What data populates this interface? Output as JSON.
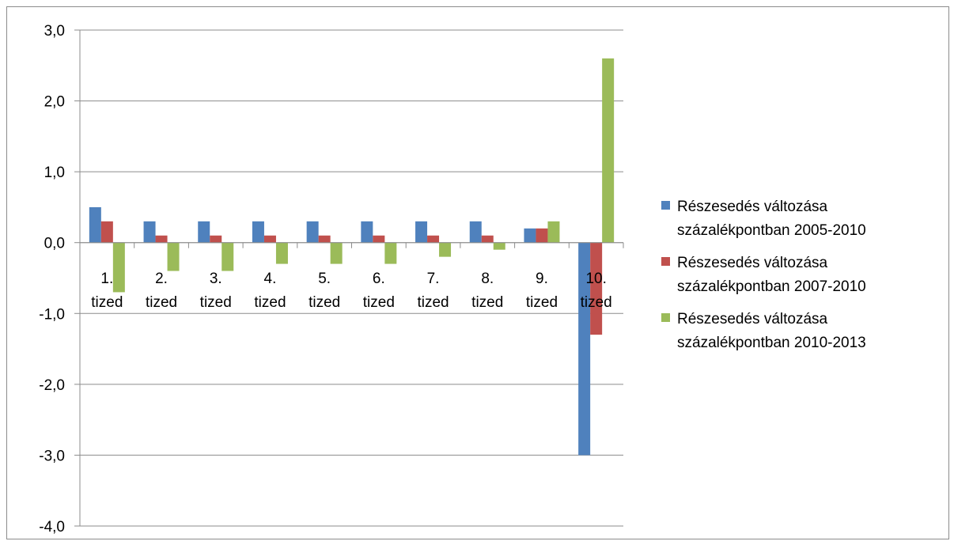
{
  "chart_data": {
    "type": "bar",
    "title": "",
    "xlabel": "",
    "ylabel": "",
    "ylim": [
      -4,
      3
    ],
    "y_ticks": [
      "3,0",
      "2,0",
      "1,0",
      "0,0",
      "-1,0",
      "-2,0",
      "-3,0",
      "-4,0"
    ],
    "y_tick_values": [
      3,
      2,
      1,
      0,
      -1,
      -2,
      -3,
      -4
    ],
    "grid": true,
    "legend_position": "right",
    "categories": [
      [
        "1.",
        "tized"
      ],
      [
        "2.",
        "tized"
      ],
      [
        "3.",
        "tized"
      ],
      [
        "4.",
        "tized"
      ],
      [
        "5.",
        "tized"
      ],
      [
        "6.",
        "tized"
      ],
      [
        "7.",
        "tized"
      ],
      [
        "8.",
        "tized"
      ],
      [
        "9.",
        "tized"
      ],
      [
        "10.",
        "tized"
      ]
    ],
    "series": [
      {
        "name": "Részesedés változása százalékpontban 2005-2010",
        "legend_lines": [
          "Részesedés változása",
          "százalékpontban 2005-2010"
        ],
        "color": "#4f81bd",
        "values": [
          0.5,
          0.3,
          0.3,
          0.3,
          0.3,
          0.3,
          0.3,
          0.3,
          0.2,
          -3.0
        ]
      },
      {
        "name": "Részesedés változása százalékpontban 2007-2010",
        "legend_lines": [
          "Részesedés változása",
          "százalékpontban 2007-2010"
        ],
        "color": "#c0504d",
        "values": [
          0.3,
          0.1,
          0.1,
          0.1,
          0.1,
          0.1,
          0.1,
          0.1,
          0.2,
          -1.3
        ]
      },
      {
        "name": "Részesedés változása százalékpontban 2010-2013",
        "legend_lines": [
          "Részesedés változása",
          "százalékpontban 2010-2013"
        ],
        "color": "#9bbb59",
        "values": [
          -0.7,
          -0.4,
          -0.4,
          -0.3,
          -0.3,
          -0.3,
          -0.2,
          -0.1,
          0.3,
          2.6
        ]
      }
    ]
  }
}
